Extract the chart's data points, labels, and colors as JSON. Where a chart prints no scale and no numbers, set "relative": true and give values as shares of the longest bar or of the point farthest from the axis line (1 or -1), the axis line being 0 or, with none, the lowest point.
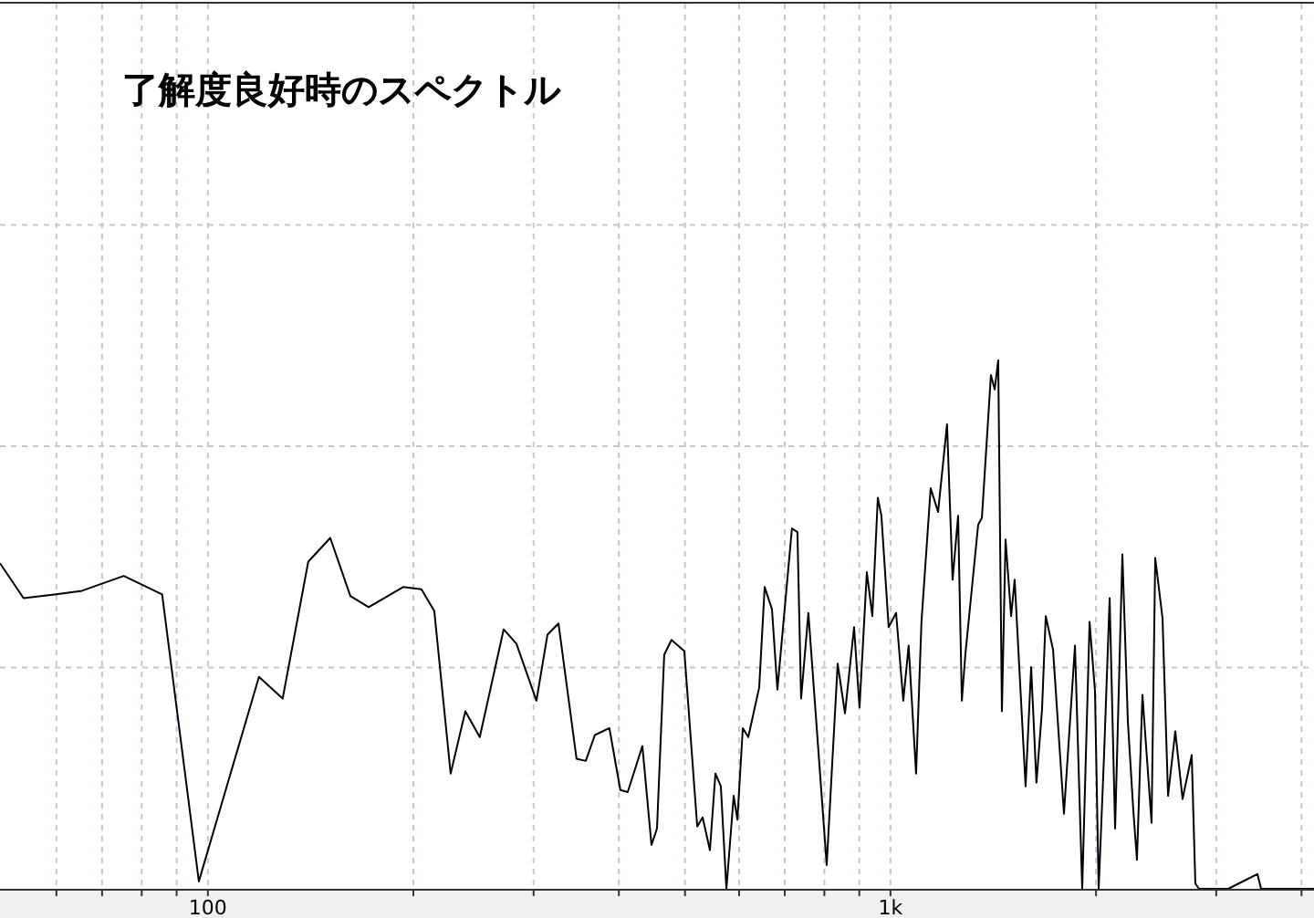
{
  "chart_data": {
    "type": "line",
    "title": "了解度良好時のスペクトル",
    "relative": true,
    "log": "x",
    "grid": true,
    "xlim": [
      49.6,
      4172
    ],
    "xticks": [
      {
        "value": 60,
        "label": null
      },
      {
        "value": 70,
        "label": null
      },
      {
        "value": 80,
        "label": null
      },
      {
        "value": 90,
        "label": null
      },
      {
        "value": 100,
        "label": "100"
      },
      {
        "value": 200,
        "label": null
      },
      {
        "value": 300,
        "label": null
      },
      {
        "value": 400,
        "label": null
      },
      {
        "value": 500,
        "label": null
      },
      {
        "value": 600,
        "label": null
      },
      {
        "value": 700,
        "label": null
      },
      {
        "value": 800,
        "label": null
      },
      {
        "value": 900,
        "label": null
      },
      {
        "value": 1000,
        "label": "1k"
      },
      {
        "value": 2000,
        "label": null
      },
      {
        "value": 3000,
        "label": null
      },
      {
        "value": 4000,
        "label": null
      }
    ],
    "x": [
      49.6,
      53.7,
      59.6,
      65.4,
      75.3,
      85.7,
      97,
      118.8,
      128.7,
      140.3,
      151.1,
      161.7,
      172,
      193.2,
      205.5,
      214.6,
      226.8,
      238.3,
      250.2,
      271.2,
      283.1,
      302.9,
      314.4,
      326.3,
      346.8,
      357.7,
      368.9,
      387.4,
      402,
      412.1,
      433,
      446.5,
      454.9,
      466.1,
      477.7,
      498.8,
      521,
      530.6,
      543.8,
      554,
      564.2,
      574.9,
      589.2,
      596.6,
      607.6,
      618.9,
      642.1,
      654.1,
      670.4,
      682.8,
      717.1,
      730.5,
      739.6,
      758,
      806.3,
      836.7,
      857.6,
      884.3,
      900.7,
      923.2,
      940.5,
      958,
      969.7,
      993.8,
      1019,
      1044,
      1063,
      1090,
      1110,
      1145,
      1174,
      1210,
      1233,
      1256,
      1272,
      1287,
      1344,
      1361,
      1403,
      1421,
      1438,
      1456,
      1474,
      1502,
      1520,
      1577,
      1607,
      1636,
      1667,
      1688,
      1730,
      1795,
      1863,
      1909,
      1957,
      1993,
      2018,
      2055,
      2094,
      2133,
      2186,
      2227,
      2268,
      2296,
      2339,
      2412,
      2442,
      2503,
      2550,
      2613,
      2678,
      2762,
      2796,
      2831,
      2902,
      3124,
      3447,
      3490,
      4172
    ],
    "series": [
      {
        "color": "#000000",
        "values": [
          0.616,
          0.55,
          0.557,
          0.564,
          0.592,
          0.557,
          0.014,
          0.401,
          0.36,
          0.619,
          0.664,
          0.554,
          0.533,
          0.571,
          0.567,
          0.526,
          0.218,
          0.336,
          0.287,
          0.491,
          0.464,
          0.356,
          0.481,
          0.502,
          0.246,
          0.242,
          0.291,
          0.304,
          0.187,
          0.183,
          0.27,
          0.083,
          0.114,
          0.443,
          0.471,
          0.45,
          0.118,
          0.135,
          0.073,
          0.218,
          0.194,
          0,
          0.176,
          0.131,
          0.304,
          0.287,
          0.381,
          0.571,
          0.529,
          0.377,
          0.682,
          0.675,
          0.36,
          0.522,
          0.045,
          0.426,
          0.332,
          0.495,
          0.343,
          0.599,
          0.516,
          0.74,
          0.706,
          0.495,
          0.522,
          0.356,
          0.46,
          0.218,
          0.505,
          0.758,
          0.713,
          0.879,
          0.585,
          0.706,
          0.356,
          0.443,
          0.689,
          0.702,
          0.972,
          0.945,
          1,
          0.336,
          0.661,
          0.516,
          0.585,
          0.194,
          0.419,
          0.201,
          0.339,
          0.516,
          0.453,
          0.142,
          0.46,
          0,
          0.505,
          0.374,
          0,
          0.253,
          0.55,
          0.114,
          0.633,
          0.315,
          0.149,
          0.055,
          0.367,
          0.125,
          0.626,
          0.512,
          0.176,
          0.298,
          0.17,
          0.253,
          0.01,
          0,
          0,
          0,
          0.028,
          0,
          0
        ]
      }
    ]
  }
}
